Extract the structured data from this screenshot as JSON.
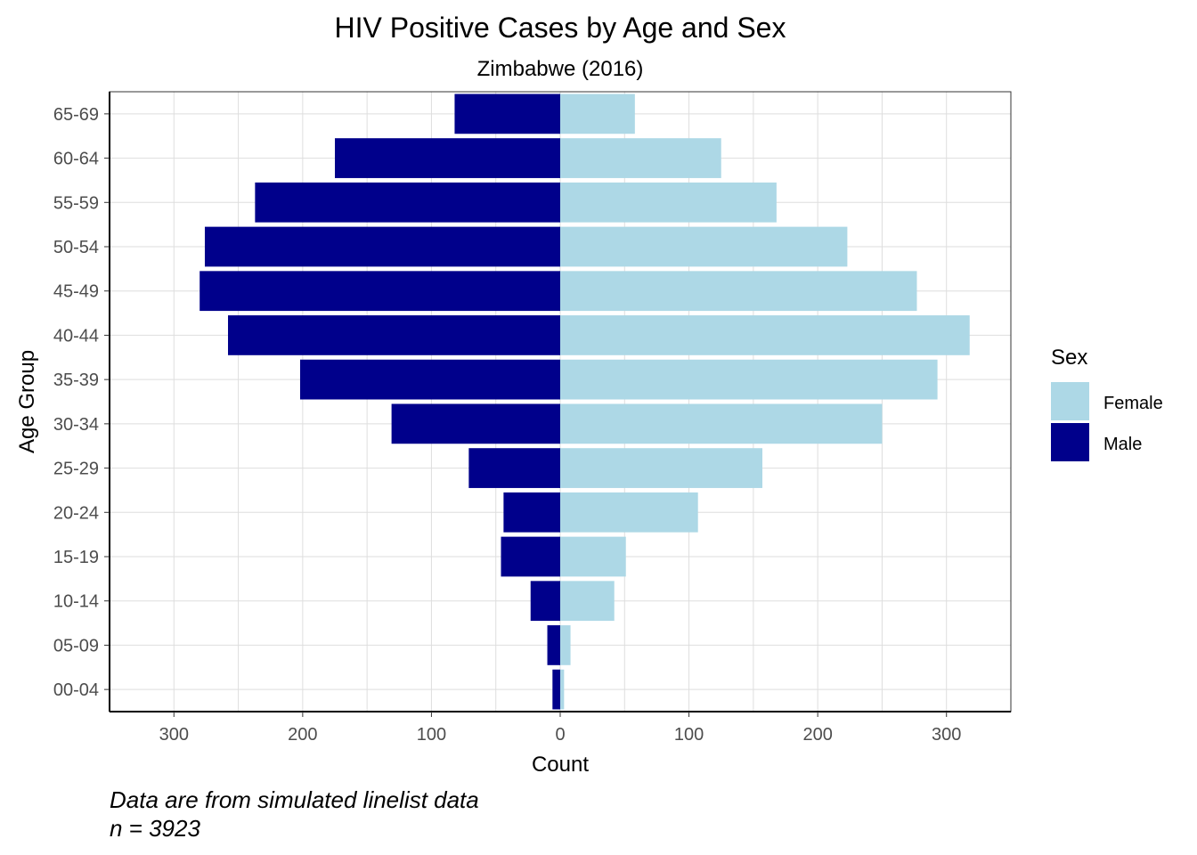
{
  "chart_data": {
    "type": "bar",
    "orientation": "horizontal-population-pyramid",
    "title": "HIV Positive Cases by Age and Sex",
    "subtitle": "Zimbabwe (2016)",
    "xlabel": "Count",
    "ylabel": "Age Group",
    "xlim": [
      -350,
      350
    ],
    "x_ticks": [
      -300,
      -200,
      -100,
      0,
      100,
      200,
      300
    ],
    "x_tick_labels": [
      "300",
      "200",
      "100",
      "0",
      "100",
      "200",
      "300"
    ],
    "categories": [
      "00-04",
      "05-09",
      "10-14",
      "15-19",
      "20-24",
      "25-29",
      "30-34",
      "35-39",
      "40-44",
      "45-49",
      "50-54",
      "55-59",
      "60-64",
      "65-69"
    ],
    "series": [
      {
        "name": "Female",
        "color": "#add8e6",
        "values": [
          3,
          8,
          42,
          51,
          107,
          157,
          250,
          293,
          318,
          277,
          223,
          168,
          125,
          58
        ]
      },
      {
        "name": "Male",
        "color": "#00008b",
        "values": [
          6,
          10,
          23,
          46,
          44,
          71,
          131,
          202,
          258,
          280,
          276,
          237,
          175,
          82
        ]
      }
    ],
    "legend": {
      "title": "Sex",
      "position": "right"
    },
    "grid": true
  },
  "caption": {
    "line1": "Data are from simulated linelist data",
    "line2": "n = 3923"
  }
}
